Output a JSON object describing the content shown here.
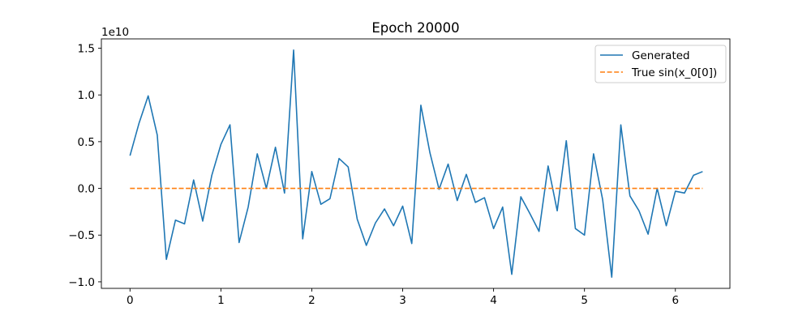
{
  "chart_data": {
    "type": "line",
    "title": "Epoch 20000",
    "xlabel": "",
    "ylabel": "",
    "y_offset_label": "1e10",
    "xlim": [
      -0.315,
      6.6
    ],
    "ylim": [
      -1.07,
      1.6
    ],
    "xticks": [
      0,
      1,
      2,
      3,
      4,
      5,
      6
    ],
    "xtick_labels": [
      "0",
      "1",
      "2",
      "3",
      "4",
      "5",
      "6"
    ],
    "yticks": [
      -1.0,
      -0.5,
      0.0,
      0.5,
      1.0,
      1.5
    ],
    "ytick_labels": [
      "−1.0",
      "−0.5",
      "0.0",
      "0.5",
      "1.0",
      "1.5"
    ],
    "grid": false,
    "legend_position": "top-right",
    "series": [
      {
        "name": "Generated",
        "color": "#1f77b4",
        "style": "solid",
        "x": [
          0.0,
          0.1,
          0.2,
          0.3,
          0.4,
          0.5,
          0.6,
          0.7,
          0.8,
          0.9,
          1.0,
          1.1,
          1.2,
          1.3,
          1.4,
          1.5,
          1.6,
          1.7,
          1.8,
          1.9,
          2.0,
          2.1,
          2.2,
          2.3,
          2.4,
          2.5,
          2.6,
          2.7,
          2.8,
          2.9,
          3.0,
          3.1,
          3.2,
          3.3,
          3.4,
          3.5,
          3.6,
          3.7,
          3.8,
          3.9,
          4.0,
          4.1,
          4.2,
          4.3,
          4.4,
          4.5,
          4.6,
          4.7,
          4.8,
          4.9,
          5.0,
          5.1,
          5.2,
          5.3,
          5.4,
          5.5,
          5.6,
          5.7,
          5.8,
          5.9,
          6.0,
          6.1,
          6.2,
          6.3
        ],
        "y": [
          0.35,
          0.7,
          0.99,
          0.57,
          -0.76,
          -0.34,
          -0.38,
          0.09,
          -0.35,
          0.14,
          0.47,
          0.68,
          -0.58,
          -0.2,
          0.37,
          0.0,
          0.44,
          -0.05,
          1.48,
          -0.54,
          0.18,
          -0.17,
          -0.11,
          0.32,
          0.23,
          -0.33,
          -0.61,
          -0.37,
          -0.22,
          -0.4,
          -0.19,
          -0.59,
          0.89,
          0.38,
          -0.01,
          0.26,
          -0.13,
          0.15,
          -0.15,
          -0.1,
          -0.43,
          -0.2,
          -0.92,
          -0.09,
          -0.27,
          -0.46,
          0.24,
          -0.24,
          0.51,
          -0.43,
          -0.5,
          0.37,
          -0.12,
          -0.95,
          0.68,
          -0.08,
          -0.24,
          -0.49,
          0.0,
          -0.4,
          -0.03,
          -0.05,
          0.14,
          0.18
        ]
      },
      {
        "name": "True sin(x_0[0])",
        "color": "#ff7f0e",
        "style": "dashed",
        "x": [
          0.0,
          6.3
        ],
        "y": [
          0.0,
          0.0
        ]
      }
    ]
  }
}
